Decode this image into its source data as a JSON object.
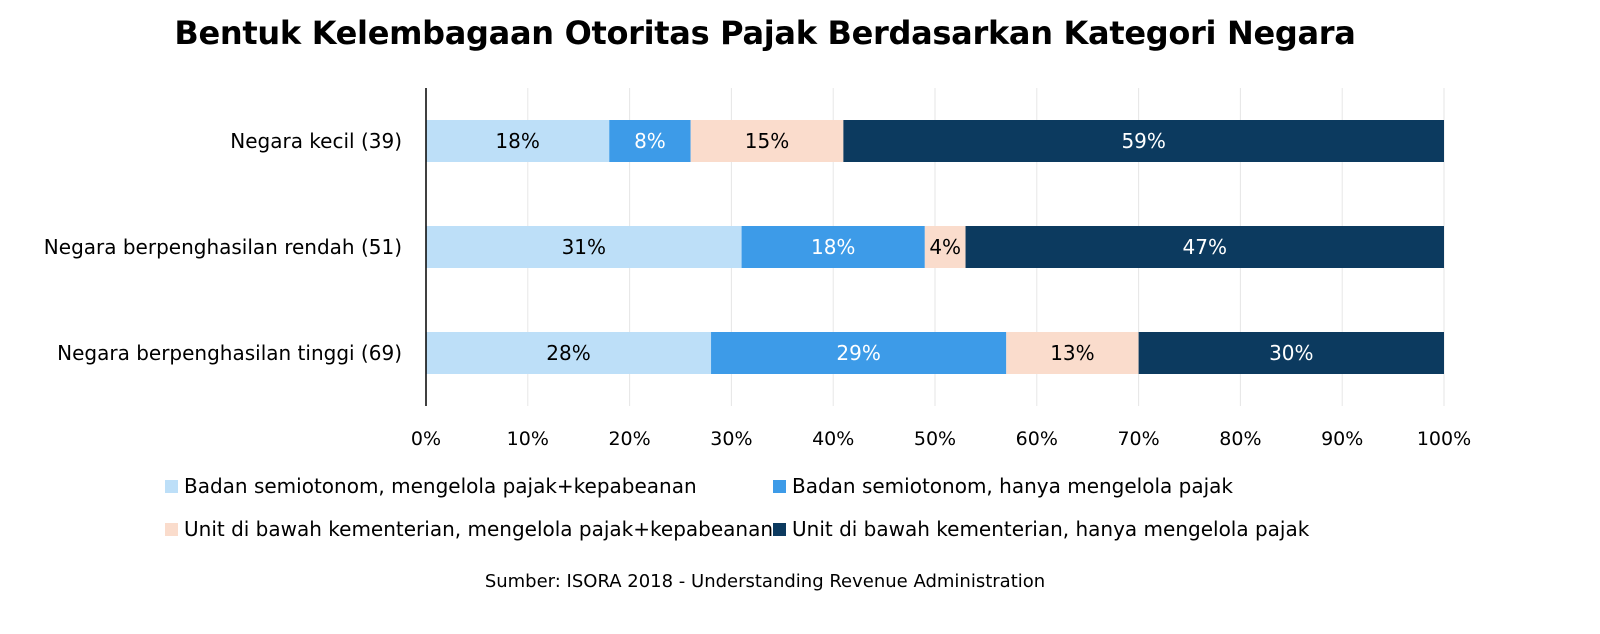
{
  "chart_data": {
    "type": "bar",
    "orientation": "horizontal",
    "stacked": true,
    "title": "Bentuk Kelembagaan Otoritas Pajak Berdasarkan Kategori Negara",
    "categories": [
      "Negara kecil (39)",
      "Negara berpenghasilan rendah (51)",
      "Negara berpenghasilan tinggi (69)"
    ],
    "series": [
      {
        "name": "Badan semiotonom, mengelola pajak+kepabeanan",
        "color": "#bddff8",
        "label_color": "#000000",
        "values": [
          18,
          31,
          28
        ],
        "labels": [
          "18%",
          "31%",
          "28%"
        ]
      },
      {
        "name": "Badan semiotonom, hanya mengelola pajak",
        "color": "#3d9be8",
        "label_color": "#ffffff",
        "values": [
          8,
          18,
          29
        ],
        "labels": [
          "8%",
          "18%",
          "29%"
        ]
      },
      {
        "name": "Unit di bawah kementerian, mengelola pajak+kepabeanan",
        "color": "#fadccc",
        "label_color": "#000000",
        "values": [
          15,
          4,
          13
        ],
        "labels": [
          "15%",
          "4%",
          "13%"
        ]
      },
      {
        "name": "Unit di bawah kementerian, hanya mengelola pajak",
        "color": "#0c3a5f",
        "label_color": "#ffffff",
        "values": [
          59,
          47,
          30
        ],
        "labels": [
          "59%",
          "47%",
          "30%"
        ]
      }
    ],
    "x_ticks": [
      "0%",
      "10%",
      "20%",
      "30%",
      "40%",
      "50%",
      "60%",
      "70%",
      "80%",
      "90%",
      "100%"
    ],
    "xlim": [
      0,
      100
    ],
    "grid": true,
    "legend_position": "bottom",
    "source": "Sumber: ISORA 2018 - Understanding Revenue Administration"
  }
}
